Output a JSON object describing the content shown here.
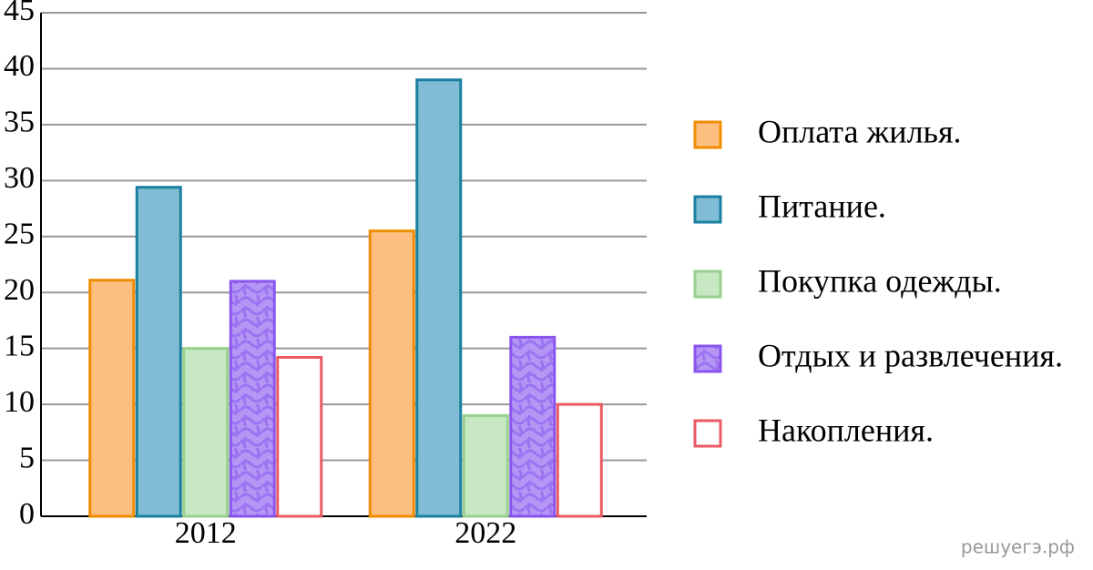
{
  "chart_data": {
    "type": "bar",
    "categories": [
      "2012",
      "2022"
    ],
    "series": [
      {
        "name": "Оплата жилья.",
        "color": "#fdbf7f",
        "stroke": "#f08c00",
        "values": [
          21.1,
          25.5
        ]
      },
      {
        "name": "Питание.",
        "color": "#80bcd6",
        "stroke": "#1a7fa0",
        "values": [
          29.4,
          39
        ]
      },
      {
        "name": "Покупка одежды.",
        "color": "#c8e8c4",
        "stroke": "#98d08e",
        "values": [
          15,
          9
        ]
      },
      {
        "name": "Отдых и развлечения.",
        "color": "#b497f5",
        "stroke": "#8a55ee",
        "pattern": "wavy",
        "values": [
          21,
          16
        ]
      },
      {
        "name": "Накопления.",
        "color": "#ffffff",
        "stroke": "#e85a64",
        "values": [
          14.2,
          10
        ]
      }
    ],
    "ylim": [
      0,
      45
    ],
    "yticks": [
      0,
      5,
      10,
      15,
      20,
      25,
      30,
      35,
      40,
      45
    ],
    "grid": true,
    "legend": "right",
    "watermark": "решуегэ.рф"
  }
}
